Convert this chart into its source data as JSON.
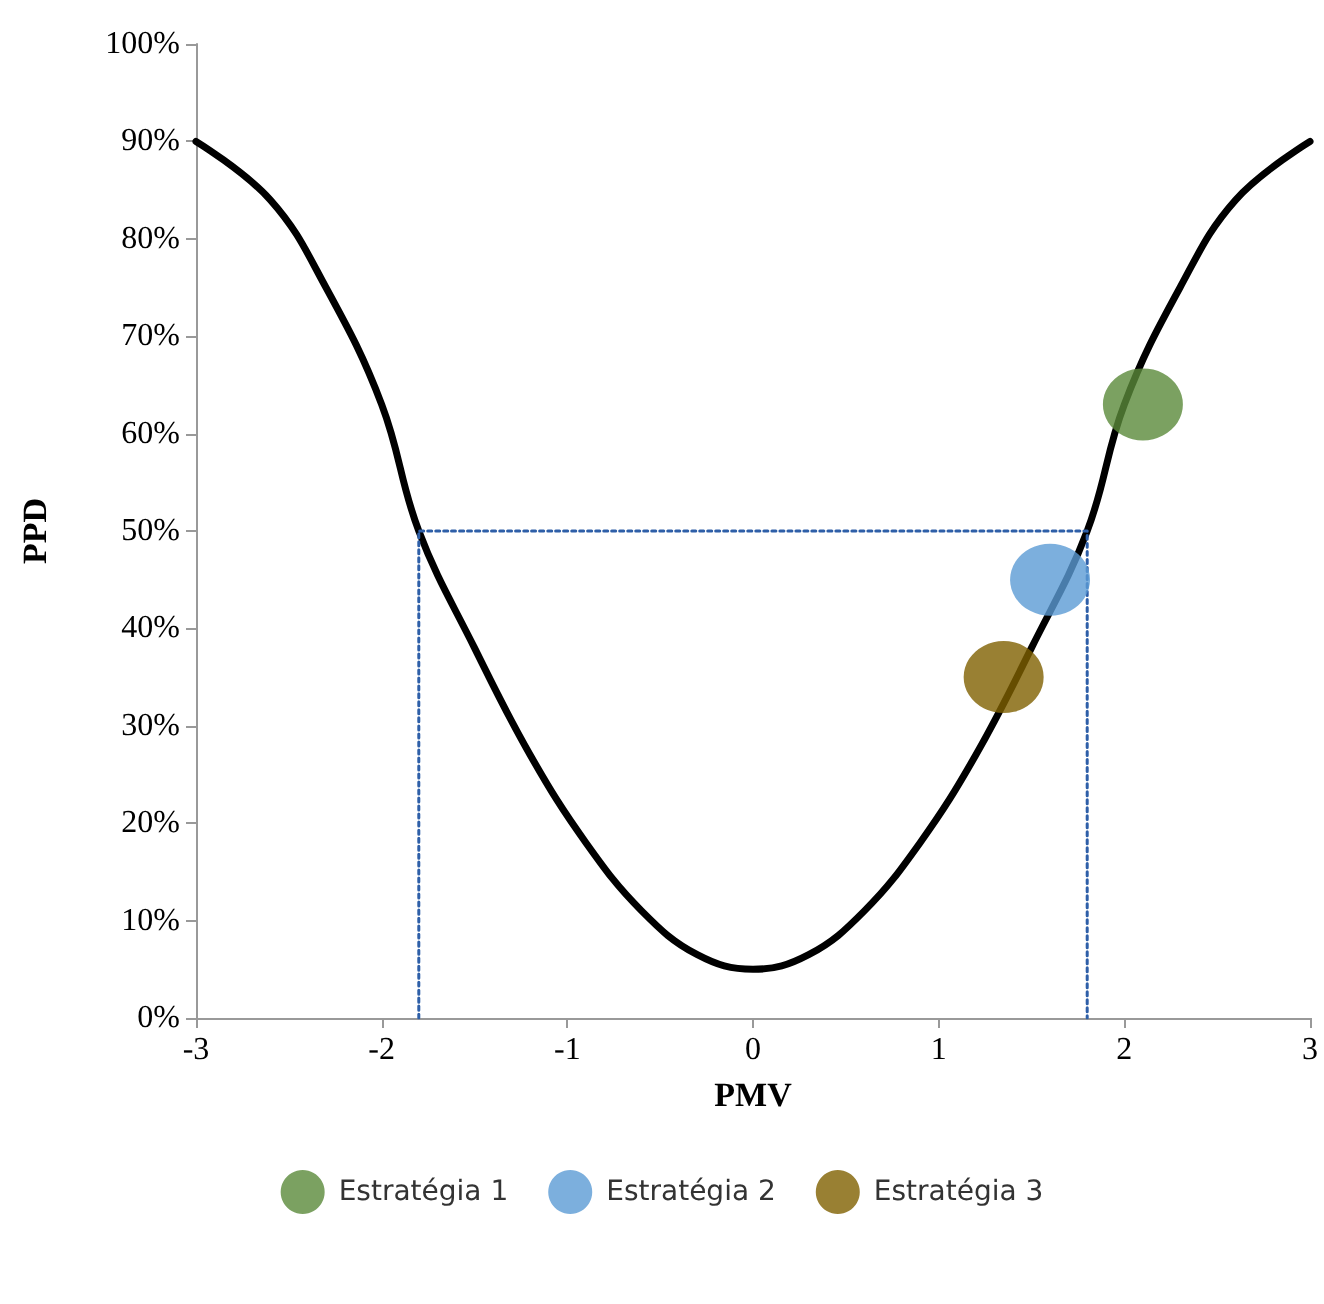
{
  "chart_data": {
    "type": "line",
    "xlabel": "PMV",
    "ylabel": "PPD",
    "xlim": [
      -3,
      3
    ],
    "ylim": [
      0,
      100
    ],
    "xticks": [
      -3,
      -2,
      -1,
      0,
      1,
      2,
      3
    ],
    "yticks": [
      {
        "value": 0,
        "label": "0%"
      },
      {
        "value": 10,
        "label": "10%"
      },
      {
        "value": 20,
        "label": "20%"
      },
      {
        "value": 30,
        "label": "30%"
      },
      {
        "value": 40,
        "label": "40%"
      },
      {
        "value": 50,
        "label": "50%"
      },
      {
        "value": 60,
        "label": "60%"
      },
      {
        "value": 70,
        "label": "70%"
      },
      {
        "value": 80,
        "label": "80%"
      },
      {
        "value": 90,
        "label": "90%"
      },
      {
        "value": 100,
        "label": "100%"
      }
    ],
    "grid": false,
    "legend": "bottom",
    "series": [
      {
        "color": "#000000",
        "marker": "none",
        "line_style": "solid",
        "x": [
          -3,
          -2.6,
          -2.3,
          -2,
          -1.8,
          -1.5,
          -1.2,
          -0.9,
          -0.6,
          -0.3,
          0,
          0.3,
          0.6,
          0.9,
          1.2,
          1.5,
          1.8,
          2,
          2.3,
          2.6,
          3
        ],
        "values": [
          90,
          84,
          75,
          63,
          50,
          38,
          27,
          18,
          11,
          6.5,
          5,
          6.5,
          11,
          18,
          27,
          38,
          50,
          63,
          75,
          84,
          90
        ]
      },
      {
        "color": "#2e5fa8",
        "marker": "none",
        "line_style": "dotted",
        "x": [
          -1.8,
          -1.8,
          1.8,
          1.8
        ],
        "values": [
          0,
          50,
          50,
          0
        ]
      },
      {
        "type": "scatter",
        "name": "Estratégia 1",
        "color": "#5a8a3a",
        "marker": "circle",
        "x": [
          2.1
        ],
        "values": [
          63
        ]
      },
      {
        "type": "scatter",
        "name": "Estratégia 2",
        "color": "#5b9bd5",
        "marker": "circle",
        "x": [
          1.6
        ],
        "values": [
          45
        ]
      },
      {
        "type": "scatter",
        "name": "Estratégia 3",
        "color": "#7f6000",
        "marker": "circle",
        "x": [
          1.35
        ],
        "values": [
          35
        ]
      }
    ]
  }
}
